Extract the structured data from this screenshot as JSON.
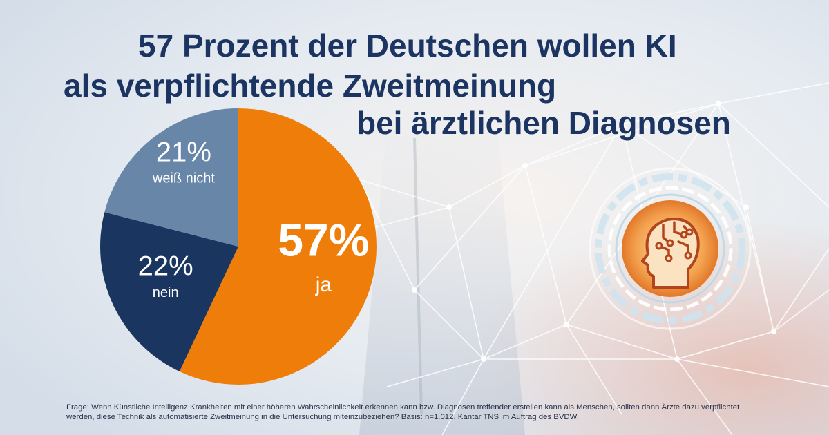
{
  "title": {
    "line1": "57 Prozent der Deutschen wollen KI",
    "line2": "als verpflichtende Zweitmeinung",
    "line3": "bei ärztlichen Diagnosen"
  },
  "chart_data": {
    "type": "pie",
    "title": "57 Prozent der Deutschen wollen KI als verpflichtende Zweitmeinung bei ärztlichen Diagnosen",
    "slices": [
      {
        "label": "ja",
        "value": 57,
        "display": "57%",
        "color": "#ef7d0a"
      },
      {
        "label": "nein",
        "value": 22,
        "display": "22%",
        "color": "#1a3660"
      },
      {
        "label": "weiß nicht",
        "value": 21,
        "display": "21%",
        "color": "#6786a8"
      }
    ],
    "start_angle_deg": 0,
    "direction": "clockwise"
  },
  "footnote": {
    "line1": "Frage: Wenn Künstliche Intelligenz Krankheiten mit einer höheren Wahrscheinlichkeit erkennen kann bzw. Diagnosen treffender erstellen kann als Menschen, sollten dann Ärzte dazu verpflichtet",
    "line2": "werden, diese Technik als automatisierte Zweitmeinung in die Untersuchung miteinzubeziehen? Basis: n=1.012. Kantar TNS im Auftrag des BVDW."
  },
  "illustration": {
    "icon": "ai-brain-head-icon",
    "accent": "#f0a44a"
  }
}
